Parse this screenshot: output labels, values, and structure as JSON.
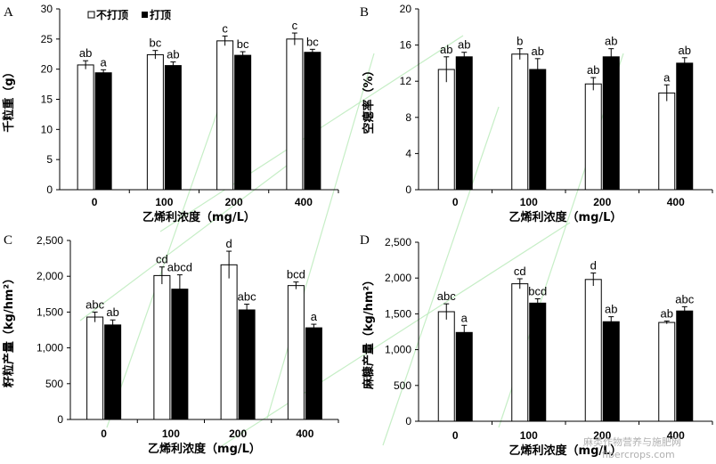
{
  "legend": {
    "open_label": "不打顶",
    "filled_label": "打顶"
  },
  "watermark": {
    "line1": "麻类作物营养与施肥网",
    "line2": "fibercrops.com",
    "color": "#b0b0b0"
  },
  "colors": {
    "open_fill": "#ffffff",
    "filled_fill": "#000000",
    "axis": "#000000"
  },
  "chart_data": [
    {
      "panel": "A",
      "type": "bar",
      "categories": [
        "0",
        "100",
        "200",
        "400"
      ],
      "xlabel": "乙烯利浓度（mg/L）",
      "ylabel": "千粒重（g）",
      "ylim": [
        0,
        30
      ],
      "yticks": [
        0,
        5,
        10,
        15,
        20,
        25,
        30
      ],
      "tick_format": "plain",
      "series": [
        {
          "name": "不打顶",
          "values": [
            20.7,
            22.4,
            24.7,
            25.0
          ],
          "errors": [
            0.7,
            0.7,
            0.8,
            1.0
          ],
          "labels": [
            "ab",
            "bc",
            "c",
            "c"
          ]
        },
        {
          "name": "打顶",
          "values": [
            19.4,
            20.6,
            22.3,
            22.8
          ],
          "errors": [
            0.5,
            0.6,
            0.6,
            0.5
          ],
          "labels": [
            "a",
            "ab",
            "bc",
            "bc"
          ]
        }
      ]
    },
    {
      "panel": "B",
      "type": "bar",
      "categories": [
        "0",
        "100",
        "200",
        "400"
      ],
      "xlabel": "乙烯利浓度（mg/L）",
      "ylabel": "空瘪率（%）",
      "ylim": [
        0,
        20
      ],
      "yticks": [
        0,
        4,
        8,
        12,
        16,
        20
      ],
      "tick_format": "plain",
      "series": [
        {
          "name": "不打顶",
          "values": [
            13.3,
            15.0,
            11.7,
            10.7
          ],
          "errors": [
            1.4,
            0.6,
            0.7,
            0.9
          ],
          "labels": [
            "ab",
            "b",
            "ab",
            "a"
          ]
        },
        {
          "name": "打顶",
          "values": [
            14.7,
            13.3,
            14.7,
            14.0
          ],
          "errors": [
            0.5,
            1.2,
            0.9,
            0.6
          ],
          "labels": [
            "ab",
            "ab",
            "ab",
            "ab"
          ]
        }
      ]
    },
    {
      "panel": "C",
      "type": "bar",
      "categories": [
        "0",
        "100",
        "200",
        "400"
      ],
      "xlabel": "乙烯利浓度（mg/L）",
      "ylabel": "籽粒产量（kg/hm²）",
      "ylim": [
        0,
        2500
      ],
      "yticks": [
        0,
        500,
        1000,
        1500,
        2000,
        2500
      ],
      "tick_format": "comma",
      "series": [
        {
          "name": "不打顶",
          "values": [
            1430,
            2010,
            2160,
            1870
          ],
          "errors": [
            70,
            120,
            190,
            50
          ],
          "labels": [
            "abc",
            "cd",
            "d",
            "bcd"
          ]
        },
        {
          "name": "打顶",
          "values": [
            1320,
            1820,
            1530,
            1280
          ],
          "errors": [
            70,
            200,
            80,
            50
          ],
          "labels": [
            "ab",
            "abcd",
            "abc",
            "a"
          ]
        }
      ]
    },
    {
      "panel": "D",
      "type": "bar",
      "categories": [
        "0",
        "100",
        "200",
        "400"
      ],
      "xlabel": "乙烯利浓度（mg/L）",
      "ylabel": "麻糠产量（kg/hm²）",
      "ylim": [
        0,
        2500
      ],
      "yticks": [
        0,
        500,
        1000,
        1500,
        2000,
        2500
      ],
      "tick_format": "comma",
      "series": [
        {
          "name": "不打顶",
          "values": [
            1530,
            1920,
            1980,
            1380
          ],
          "errors": [
            110,
            70,
            90,
            20
          ],
          "labels": [
            "abc",
            "cd",
            "d",
            "ab"
          ]
        },
        {
          "name": "打顶",
          "values": [
            1240,
            1650,
            1390,
            1540
          ],
          "errors": [
            100,
            60,
            70,
            60
          ],
          "labels": [
            "a",
            "bcd",
            "ab",
            "abc"
          ]
        }
      ]
    }
  ]
}
